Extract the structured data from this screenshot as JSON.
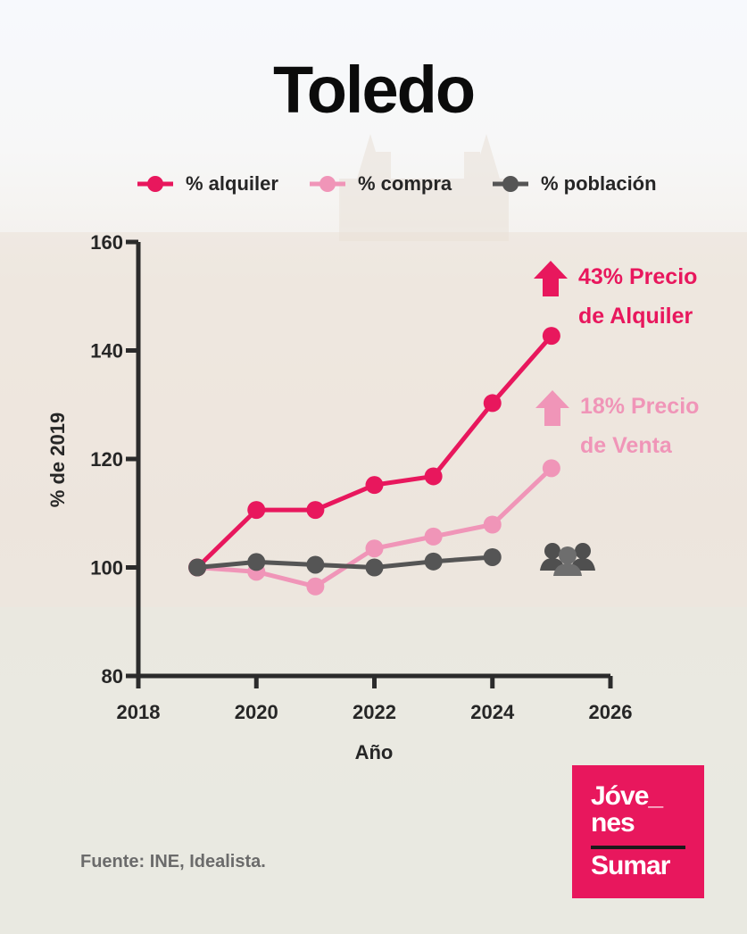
{
  "title": "Toledo",
  "colors": {
    "alquiler": "#e8175d",
    "compra": "#f095b8",
    "poblacion": "#555555",
    "axis": "#2b2b2b",
    "logo_bg": "#e8175d"
  },
  "legend": [
    {
      "label": "% alquiler",
      "series": "alquiler"
    },
    {
      "label": "% compra",
      "series": "compra"
    },
    {
      "label": "% población",
      "series": "poblacion"
    }
  ],
  "annotations": {
    "alquiler": {
      "line1": "43% Precio",
      "line2": "de Alquiler",
      "icon": "arrow-up-icon"
    },
    "compra": {
      "line1": "18% Precio",
      "line2": "de Venta",
      "icon": "arrow-up-icon"
    },
    "poblacion": {
      "icon": "people-group-icon"
    }
  },
  "source": "Fuente: INE, Idealista.",
  "logo": {
    "line1": "Jóve_",
    "line2": "nes",
    "line3": "Sumar"
  },
  "chart_data": {
    "type": "line",
    "title": "Toledo",
    "xlabel": "Año",
    "ylabel": "% de 2019",
    "xlim": [
      2018,
      2026
    ],
    "ylim": [
      80,
      160
    ],
    "xticks": [
      2018,
      2020,
      2022,
      2024,
      2026
    ],
    "yticks": [
      80,
      100,
      120,
      140,
      160
    ],
    "grid": false,
    "legend_position": "top-center",
    "series": [
      {
        "name": "% alquiler",
        "key": "alquiler",
        "x": [
          2019,
          2020,
          2021,
          2022,
          2023,
          2024,
          2025
        ],
        "y": [
          100,
          110.6,
          110.6,
          115.2,
          116.8,
          130.3,
          142.7
        ]
      },
      {
        "name": "% compra",
        "key": "compra",
        "x": [
          2019,
          2020,
          2021,
          2022,
          2023,
          2024,
          2025
        ],
        "y": [
          100,
          99.2,
          96.5,
          103.5,
          105.7,
          107.9,
          118.3
        ]
      },
      {
        "name": "% población",
        "key": "poblacion",
        "x": [
          2019,
          2020,
          2021,
          2022,
          2023,
          2024
        ],
        "y": [
          100,
          101.0,
          100.5,
          100.0,
          101.1,
          101.9
        ]
      }
    ]
  }
}
